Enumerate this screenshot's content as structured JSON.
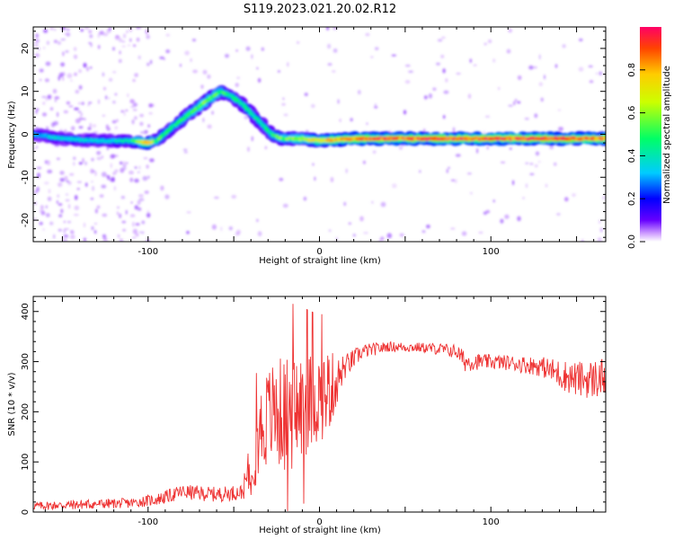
{
  "title": "S119.2023.021.20.02.R12",
  "chart_data": [
    {
      "type": "heatmap",
      "xlabel": "Height of straight line (km)",
      "ylabel": "Frequency (Hz)",
      "xlim": [
        -167,
        167
      ],
      "ylim": [
        -25,
        25
      ],
      "xticks": [
        "-100",
        "0",
        "100"
      ],
      "yticks": [
        "-20",
        "-10",
        "0",
        "10",
        "20"
      ],
      "colorbar": {
        "label": "Normalized spectral amplitude",
        "range": [
          0,
          1
        ],
        "ticks": [
          "0.0",
          "0.2",
          "0.4",
          "0.6",
          "0.8"
        ],
        "colors": [
          "#ffffff",
          "#cc99ff",
          "#6600ff",
          "#0000ff",
          "#00ccff",
          "#00ff66",
          "#ccff00",
          "#ffcc00",
          "#ff4400",
          "#ff0066"
        ]
      },
      "ridge": {
        "description_x": [
          -167,
          -150,
          -130,
          -110,
          -100,
          -95,
          -85,
          -75,
          -65,
          -58,
          -52,
          -45,
          -35,
          -28,
          -22,
          -10,
          0,
          20,
          60,
          100,
          140,
          167
        ],
        "frequency": [
          0,
          -1,
          -1.5,
          -1.5,
          -2,
          -1.5,
          2,
          5,
          8,
          10,
          9,
          7,
          3,
          0,
          -1,
          -1,
          -1.5,
          -1,
          -1,
          -1,
          -1,
          -1
        ],
        "amplitude": [
          0.3,
          0.35,
          0.35,
          0.4,
          0.8,
          0.5,
          0.45,
          0.5,
          0.55,
          0.5,
          0.45,
          0.45,
          0.4,
          0.45,
          0.55,
          0.6,
          0.75,
          0.85,
          0.9,
          0.92,
          0.9,
          0.85
        ]
      }
    },
    {
      "type": "line",
      "xlabel": "Height of straight line (km)",
      "ylabel": "SNR (10 * v/v)",
      "xlim": [
        -167,
        167
      ],
      "ylim": [
        0,
        430
      ],
      "xticks": [
        "-100",
        "0",
        "100"
      ],
      "yticks": [
        "0",
        "100",
        "200",
        "300",
        "400"
      ],
      "series_color": "#ee3333",
      "envelope": {
        "x": [
          -167,
          -140,
          -110,
          -95,
          -80,
          -60,
          -45,
          -40,
          -35,
          -30,
          -25,
          -20,
          -15,
          -10,
          -5,
          0,
          5,
          10,
          15,
          25,
          40,
          60,
          70,
          80,
          85,
          95,
          110,
          130,
          140,
          150,
          160,
          167
        ],
        "snr_mean": [
          12,
          15,
          18,
          25,
          40,
          35,
          40,
          90,
          160,
          190,
          200,
          190,
          200,
          210,
          220,
          230,
          240,
          260,
          290,
          320,
          330,
          328,
          325,
          320,
          300,
          300,
          298,
          290,
          275,
          265,
          265,
          270
        ],
        "snr_spread": [
          8,
          10,
          10,
          12,
          15,
          15,
          15,
          60,
          90,
          100,
          110,
          120,
          120,
          110,
          100,
          90,
          90,
          50,
          25,
          15,
          10,
          10,
          12,
          15,
          20,
          15,
          15,
          20,
          30,
          35,
          40,
          40
        ]
      }
    }
  ]
}
